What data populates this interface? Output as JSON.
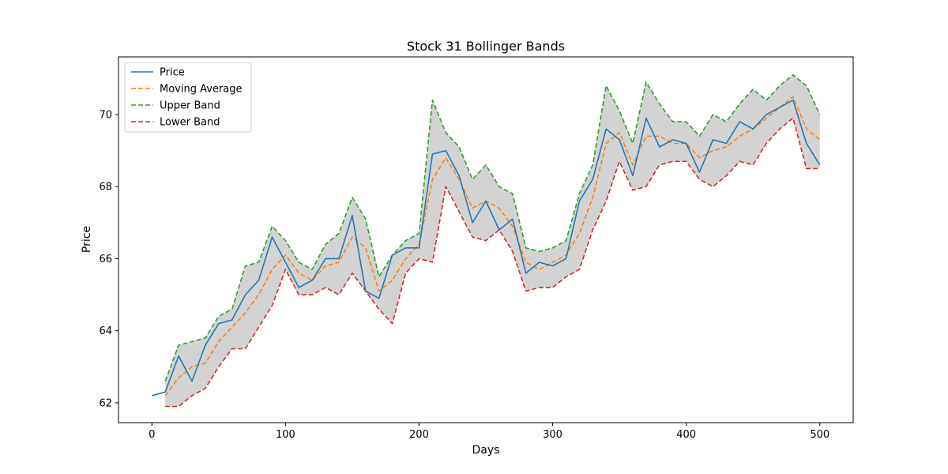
{
  "chart_data": {
    "type": "line",
    "title": "Stock 31 Bollinger Bands",
    "xlabel": "Days",
    "ylabel": "Price",
    "xlim": [
      -25,
      525
    ],
    "ylim": [
      61.45,
      71.6
    ],
    "xticks": [
      0,
      100,
      200,
      300,
      400,
      500
    ],
    "yticks": [
      62,
      64,
      66,
      68,
      70
    ],
    "legend_position": "top-left",
    "band_fill_color": "#d3d3d3",
    "series": [
      {
        "name": "Price",
        "color": "#1f77b4",
        "style": "solid",
        "x": [
          0,
          10,
          20,
          30,
          40,
          50,
          60,
          70,
          80,
          90,
          100,
          110,
          120,
          130,
          140,
          150,
          160,
          170,
          180,
          190,
          200,
          210,
          220,
          230,
          240,
          250,
          260,
          270,
          280,
          290,
          300,
          310,
          320,
          330,
          340,
          350,
          360,
          370,
          380,
          390,
          400,
          410,
          420,
          430,
          440,
          450,
          460,
          470,
          480,
          490,
          500
        ],
        "values": [
          62.2,
          62.3,
          63.3,
          62.6,
          63.6,
          64.2,
          64.3,
          65.0,
          65.4,
          66.6,
          65.9,
          65.2,
          65.4,
          66.0,
          66.0,
          67.2,
          65.1,
          64.9,
          66.1,
          66.3,
          66.3,
          68.9,
          69.0,
          68.3,
          67.0,
          67.6,
          66.8,
          67.1,
          65.6,
          65.9,
          65.8,
          66.0,
          67.6,
          68.2,
          69.6,
          69.3,
          68.3,
          69.9,
          69.1,
          69.3,
          69.2,
          68.4,
          69.3,
          69.2,
          69.8,
          69.6,
          70.0,
          70.2,
          70.4,
          69.2,
          68.6
        ]
      },
      {
        "name": "Moving Average",
        "color": "#ff7f0e",
        "style": "dashed",
        "x": [
          10,
          20,
          30,
          40,
          50,
          60,
          70,
          80,
          90,
          100,
          110,
          120,
          130,
          140,
          150,
          160,
          170,
          180,
          190,
          200,
          210,
          220,
          230,
          240,
          250,
          260,
          270,
          280,
          290,
          300,
          310,
          320,
          330,
          340,
          350,
          360,
          370,
          380,
          390,
          400,
          410,
          420,
          430,
          440,
          450,
          460,
          470,
          480,
          490,
          500
        ],
        "values": [
          62.2,
          62.7,
          63.0,
          63.1,
          63.7,
          64.1,
          64.5,
          65.0,
          65.7,
          66.1,
          65.6,
          65.4,
          65.8,
          65.9,
          66.6,
          66.3,
          65.1,
          65.4,
          66.0,
          66.4,
          68.2,
          68.8,
          68.2,
          67.4,
          67.6,
          67.4,
          66.9,
          65.9,
          65.7,
          65.9,
          66.1,
          66.7,
          67.7,
          69.2,
          69.5,
          68.6,
          69.4,
          69.4,
          69.2,
          69.2,
          68.8,
          69.0,
          69.1,
          69.4,
          69.6,
          69.9,
          70.2,
          70.5,
          69.6,
          69.3
        ]
      },
      {
        "name": "Upper Band",
        "color": "#2ca02c",
        "style": "dashed",
        "x": [
          10,
          20,
          30,
          40,
          50,
          60,
          70,
          80,
          90,
          100,
          110,
          120,
          130,
          140,
          150,
          160,
          170,
          180,
          190,
          200,
          210,
          220,
          230,
          240,
          250,
          260,
          270,
          280,
          290,
          300,
          310,
          320,
          330,
          340,
          350,
          360,
          370,
          380,
          390,
          400,
          410,
          420,
          430,
          440,
          450,
          460,
          470,
          480,
          490,
          500
        ],
        "values": [
          62.6,
          63.6,
          63.7,
          63.8,
          64.4,
          64.6,
          65.8,
          65.9,
          66.9,
          66.5,
          65.9,
          65.7,
          66.4,
          66.7,
          67.7,
          67.1,
          65.5,
          66.1,
          66.5,
          66.7,
          70.4,
          69.5,
          69.1,
          68.2,
          68.6,
          68.0,
          67.8,
          66.3,
          66.2,
          66.3,
          66.5,
          67.8,
          68.6,
          70.8,
          70.1,
          69.2,
          70.9,
          70.3,
          69.8,
          69.8,
          69.4,
          70.0,
          69.8,
          70.3,
          70.7,
          70.4,
          70.8,
          71.1,
          70.8,
          70.0
        ]
      },
      {
        "name": "Lower Band",
        "color": "#d62728",
        "style": "dashed",
        "x": [
          10,
          20,
          30,
          40,
          50,
          60,
          70,
          80,
          90,
          100,
          110,
          120,
          130,
          140,
          150,
          160,
          170,
          180,
          190,
          200,
          210,
          220,
          230,
          240,
          250,
          260,
          270,
          280,
          290,
          300,
          310,
          320,
          330,
          340,
          350,
          360,
          370,
          380,
          390,
          400,
          410,
          420,
          430,
          440,
          450,
          460,
          470,
          480,
          490,
          500
        ],
        "values": [
          61.9,
          61.9,
          62.2,
          62.4,
          63.0,
          63.5,
          63.5,
          64.1,
          64.7,
          65.7,
          65.0,
          65.0,
          65.2,
          65.0,
          65.6,
          65.1,
          64.6,
          64.2,
          65.6,
          66.0,
          65.9,
          68.0,
          67.3,
          66.6,
          66.5,
          66.8,
          66.2,
          65.1,
          65.2,
          65.2,
          65.5,
          65.7,
          66.8,
          67.6,
          68.7,
          67.9,
          68.0,
          68.6,
          68.7,
          68.7,
          68.2,
          68.0,
          68.3,
          68.7,
          68.6,
          69.2,
          69.6,
          69.9,
          68.5,
          68.5
        ]
      }
    ]
  }
}
